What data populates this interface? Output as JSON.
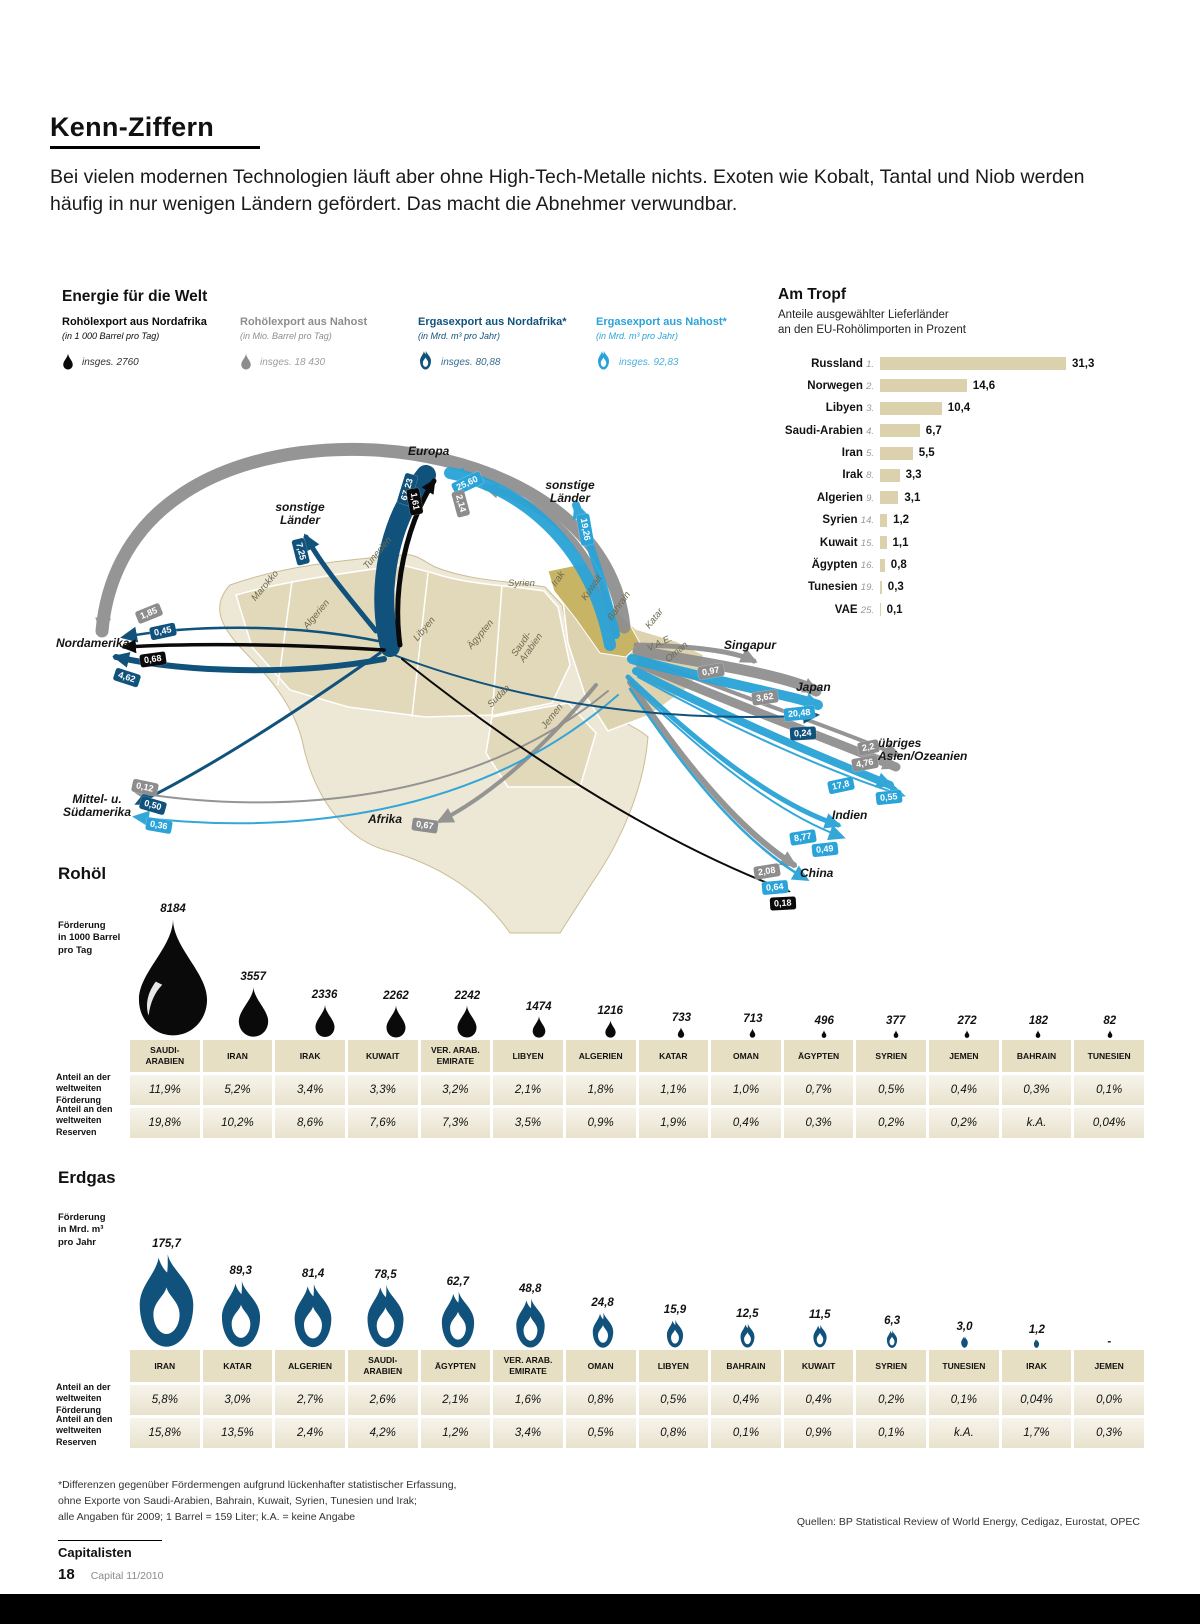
{
  "header": {
    "title": "Kenn-Ziffern",
    "intro": "Bei vielen modernen Technologien läuft aber ohne High-Tech-Metalle nichts. Exoten wie Kobalt, Tantal und Niob werden häufig in nur wenigen Ländern gefördert. Das macht die Abnehmer verwundbar."
  },
  "chart_data": [
    {
      "type": "flow-map",
      "title": "Energie für die Welt",
      "series": [
        {
          "key": "oil_na",
          "name": "Rohölexport aus Nordafrika",
          "unit": "(in 1 000 Barrel pro Tag)",
          "total": "insges. 2760",
          "color": "#0a0a0a",
          "icon": "drop"
        },
        {
          "key": "oil_nahost",
          "name": "Rohölexport aus Nahost",
          "unit": "(in Mio. Barrel pro Tag)",
          "total": "insges. 18 430",
          "color": "#8d8d8d",
          "icon": "drop"
        },
        {
          "key": "gas_na",
          "name": "Ergasexport aus Nordafrika*",
          "unit": "(in Mrd. m³ pro Jahr)",
          "total": "insges. 80,88",
          "color": "#10527c",
          "icon": "flame"
        },
        {
          "key": "gas_nahost",
          "name": "Ergasexport aus Nahost*",
          "unit": "(in Mrd. m³ pro Jahr)",
          "total": "insges. 92,83",
          "color": "#2aa3d8",
          "icon": "flame"
        }
      ],
      "flows": [
        {
          "to": "Europa",
          "key": "gas_na",
          "value": "67,23"
        },
        {
          "to": "Europa",
          "key": "gas_nahost",
          "value": "25,60"
        },
        {
          "to": "Europa",
          "key": "oil_nahost",
          "value": "2,14"
        },
        {
          "to": "Europa",
          "key": "oil_na",
          "value": "1,61"
        },
        {
          "to": "sonstige Länder (West)",
          "key": "gas_na",
          "value": "7,25"
        },
        {
          "to": "sonstige Länder (Ost)",
          "key": "gas_nahost",
          "value": "19,26"
        },
        {
          "to": "Nordamerika",
          "key": "oil_nahost",
          "value": "1,85"
        },
        {
          "to": "Nordamerika",
          "key": "gas_na",
          "value": "0,45"
        },
        {
          "to": "Nordamerika",
          "key": "oil_na",
          "value": "0,68"
        },
        {
          "to": "Nordamerika",
          "key": "gas_na",
          "value": "4,62"
        },
        {
          "to": "Mittel- u. Südamerika",
          "key": "oil_nahost",
          "value": "0,12"
        },
        {
          "to": "Mittel- u. Südamerika",
          "key": "gas_na",
          "value": "0,50"
        },
        {
          "to": "Mittel- u. Südamerika",
          "key": "gas_nahost",
          "value": "0,36"
        },
        {
          "to": "Afrika",
          "key": "oil_nahost",
          "value": "0,67"
        },
        {
          "to": "Singapur",
          "key": "oil_nahost",
          "value": "0,97"
        },
        {
          "to": "Japan",
          "key": "oil_nahost",
          "value": "3,62"
        },
        {
          "to": "Japan",
          "key": "gas_nahost",
          "value": "20,48"
        },
        {
          "to": "Japan",
          "key": "gas_na",
          "value": "0,24"
        },
        {
          "to": "übriges Asien/Ozeanien",
          "key": "oil_nahost",
          "value": "2,2"
        },
        {
          "to": "übriges Asien/Ozeanien",
          "key": "oil_nahost",
          "value": "4,76"
        },
        {
          "to": "übriges Asien/Ozeanien",
          "key": "gas_nahost",
          "value": "17,8"
        },
        {
          "to": "übriges Asien/Ozeanien",
          "key": "gas_nahost",
          "value": "0,55"
        },
        {
          "to": "Indien",
          "key": "gas_nahost",
          "value": "8,77"
        },
        {
          "to": "Indien",
          "key": "gas_nahost",
          "value": "0,49"
        },
        {
          "to": "China",
          "key": "oil_nahost",
          "value": "2,08"
        },
        {
          "to": "China",
          "key": "gas_nahost",
          "value": "0,64"
        },
        {
          "to": "China",
          "key": "oil_na",
          "value": "0,18"
        }
      ],
      "dest": {
        "europa": "Europa",
        "sonstige_west": "sonstige\nLänder",
        "sonstige_ost": "sonstige\nLänder",
        "nordamerika": "Nordamerika",
        "suedamerika": "Mittel- u.\nSüdamerika",
        "afrika": "Afrika",
        "singapur": "Singapur",
        "japan": "Japan",
        "uebriges": "übriges\nAsien/Ozeanien",
        "indien": "Indien",
        "china": "China"
      },
      "countries": {
        "marokko": "Marokko",
        "algerien": "Algerien",
        "tunesien": "Tunesien",
        "libyen": "Libyen",
        "aegypten": "Ägypten",
        "sudan": "Sudan",
        "syrien": "Syrien",
        "irak": "Irak",
        "kuwait": "Kuwait",
        "saudi": "Saudi-\nArabien",
        "bahrain": "Bahrain",
        "katar": "Katar",
        "vae": "V.A.E.",
        "oman": "Oman",
        "jemen": "Jemen"
      }
    },
    {
      "type": "bar",
      "title": "Am Tropf",
      "subtitle1": "Anteile ausgewählter Lieferländer",
      "subtitle2": "an den EU-Rohölimporten in Prozent",
      "xlim": [
        0,
        31.3
      ],
      "bar_color": "#dbd1ac",
      "items": [
        {
          "country": "Russland",
          "rank": "1.",
          "value": 31.3,
          "label": "31,3"
        },
        {
          "country": "Norwegen",
          "rank": "2.",
          "value": 14.6,
          "label": "14,6"
        },
        {
          "country": "Libyen",
          "rank": "3.",
          "value": 10.4,
          "label": "10,4"
        },
        {
          "country": "Saudi-Arabien",
          "rank": "4.",
          "value": 6.7,
          "label": "6,7"
        },
        {
          "country": "Iran",
          "rank": "5.",
          "value": 5.5,
          "label": "5,5"
        },
        {
          "country": "Irak",
          "rank": "8.",
          "value": 3.3,
          "label": "3,3"
        },
        {
          "country": "Algerien",
          "rank": "9.",
          "value": 3.1,
          "label": "3,1"
        },
        {
          "country": "Syrien",
          "rank": "14.",
          "value": 1.2,
          "label": "1,2"
        },
        {
          "country": "Kuwait",
          "rank": "15.",
          "value": 1.1,
          "label": "1,1"
        },
        {
          "country": "Ägypten",
          "rank": "16.",
          "value": 0.8,
          "label": "0,8"
        },
        {
          "country": "Tunesien",
          "rank": "19.",
          "value": 0.3,
          "label": "0,3"
        },
        {
          "country": "VAE",
          "rank": "25.",
          "value": 0.1,
          "label": "0,1"
        }
      ]
    },
    {
      "type": "table",
      "title": "Rohöl",
      "unit_label": "Förderung\nin 1000 Barrel\npro Tag",
      "row1_label": "Anteil an der\nweltweiten\nFörderung",
      "row2_label": "Anteil an den\nweltweiten\nReserven",
      "columns": [
        {
          "country": "SAUDI-\nARABIEN",
          "value": "8184",
          "v": 8184,
          "production_share": "11,9%",
          "reserves_share": "19,8%"
        },
        {
          "country": "IRAN",
          "value": "3557",
          "v": 3557,
          "production_share": "5,2%",
          "reserves_share": "10,2%"
        },
        {
          "country": "IRAK",
          "value": "2336",
          "v": 2336,
          "production_share": "3,4%",
          "reserves_share": "8,6%"
        },
        {
          "country": "KUWAIT",
          "value": "2262",
          "v": 2262,
          "production_share": "3,3%",
          "reserves_share": "7,6%"
        },
        {
          "country": "VER. ARAB.\nEMIRATE",
          "value": "2242",
          "v": 2242,
          "production_share": "3,2%",
          "reserves_share": "7,3%"
        },
        {
          "country": "LIBYEN",
          "value": "1474",
          "v": 1474,
          "production_share": "2,1%",
          "reserves_share": "3,5%"
        },
        {
          "country": "ALGERIEN",
          "value": "1216",
          "v": 1216,
          "production_share": "1,8%",
          "reserves_share": "0,9%"
        },
        {
          "country": "KATAR",
          "value": "733",
          "v": 733,
          "production_share": "1,1%",
          "reserves_share": "1,9%"
        },
        {
          "country": "OMAN",
          "value": "713",
          "v": 713,
          "production_share": "1,0%",
          "reserves_share": "0,4%"
        },
        {
          "country": "ÄGYPTEN",
          "value": "496",
          "v": 496,
          "production_share": "0,7%",
          "reserves_share": "0,3%"
        },
        {
          "country": "SYRIEN",
          "value": "377",
          "v": 377,
          "production_share": "0,5%",
          "reserves_share": "0,2%"
        },
        {
          "country": "JEMEN",
          "value": "272",
          "v": 272,
          "production_share": "0,4%",
          "reserves_share": "0,2%"
        },
        {
          "country": "BAHRAIN",
          "value": "182",
          "v": 182,
          "production_share": "0,3%",
          "reserves_share": "k.A."
        },
        {
          "country": "TUNESIEN",
          "value": "82",
          "v": 82,
          "production_share": "0,1%",
          "reserves_share": "0,04%"
        }
      ]
    },
    {
      "type": "table",
      "title": "Erdgas",
      "unit_label": "Förderung\nin Mrd. m³\npro Jahr",
      "row1_label": "Anteil an der\nweltweiten\nFörderung",
      "row2_label": "Anteil an den\nweltweiten\nReserven",
      "columns": [
        {
          "country": "IRAN",
          "value": "175,7",
          "v": 175.7,
          "production_share": "5,8%",
          "reserves_share": "15,8%"
        },
        {
          "country": "KATAR",
          "value": "89,3",
          "v": 89.3,
          "production_share": "3,0%",
          "reserves_share": "13,5%"
        },
        {
          "country": "ALGERIEN",
          "value": "81,4",
          "v": 81.4,
          "production_share": "2,7%",
          "reserves_share": "2,4%"
        },
        {
          "country": "SAUDI-\nARABIEN",
          "value": "78,5",
          "v": 78.5,
          "production_share": "2,6%",
          "reserves_share": "4,2%"
        },
        {
          "country": "ÄGYPTEN",
          "value": "62,7",
          "v": 62.7,
          "production_share": "2,1%",
          "reserves_share": "1,2%"
        },
        {
          "country": "VER. ARAB.\nEMIRATE",
          "value": "48,8",
          "v": 48.8,
          "production_share": "1,6%",
          "reserves_share": "3,4%"
        },
        {
          "country": "OMAN",
          "value": "24,8",
          "v": 24.8,
          "production_share": "0,8%",
          "reserves_share": "0,5%"
        },
        {
          "country": "LIBYEN",
          "value": "15,9",
          "v": 15.9,
          "production_share": "0,5%",
          "reserves_share": "0,8%"
        },
        {
          "country": "BAHRAIN",
          "value": "12,5",
          "v": 12.5,
          "production_share": "0,4%",
          "reserves_share": "0,1%"
        },
        {
          "country": "KUWAIT",
          "value": "11,5",
          "v": 11.5,
          "production_share": "0,4%",
          "reserves_share": "0,9%"
        },
        {
          "country": "SYRIEN",
          "value": "6,3",
          "v": 6.3,
          "production_share": "0,2%",
          "reserves_share": "0,1%"
        },
        {
          "country": "TUNESIEN",
          "value": "3,0",
          "v": 3.0,
          "production_share": "0,1%",
          "reserves_share": "k.A."
        },
        {
          "country": "IRAK",
          "value": "1,2",
          "v": 1.2,
          "production_share": "0,04%",
          "reserves_share": "1,7%"
        },
        {
          "country": "JEMEN",
          "value": "-",
          "v": 0,
          "production_share": "0,0%",
          "reserves_share": "0,3%"
        }
      ]
    }
  ],
  "footer": {
    "note": "*Differenzen gegenüber Fördermengen aufgrund lückenhafter statistischer Erfassung,\nohne Exporte von Saudi-Arabien, Bahrain, Kuwait, Syrien, Tunesien und Irak;\nalle Angaben für 2009; 1 Barrel = 159 Liter; k.A. = keine Angabe",
    "sources": "Quellen: BP Statistical Review of World Energy, Cedigaz, Eurostat, OPEC",
    "brand": "Capitalisten",
    "page_number": "18",
    "issue": "Capital  11/2010"
  }
}
